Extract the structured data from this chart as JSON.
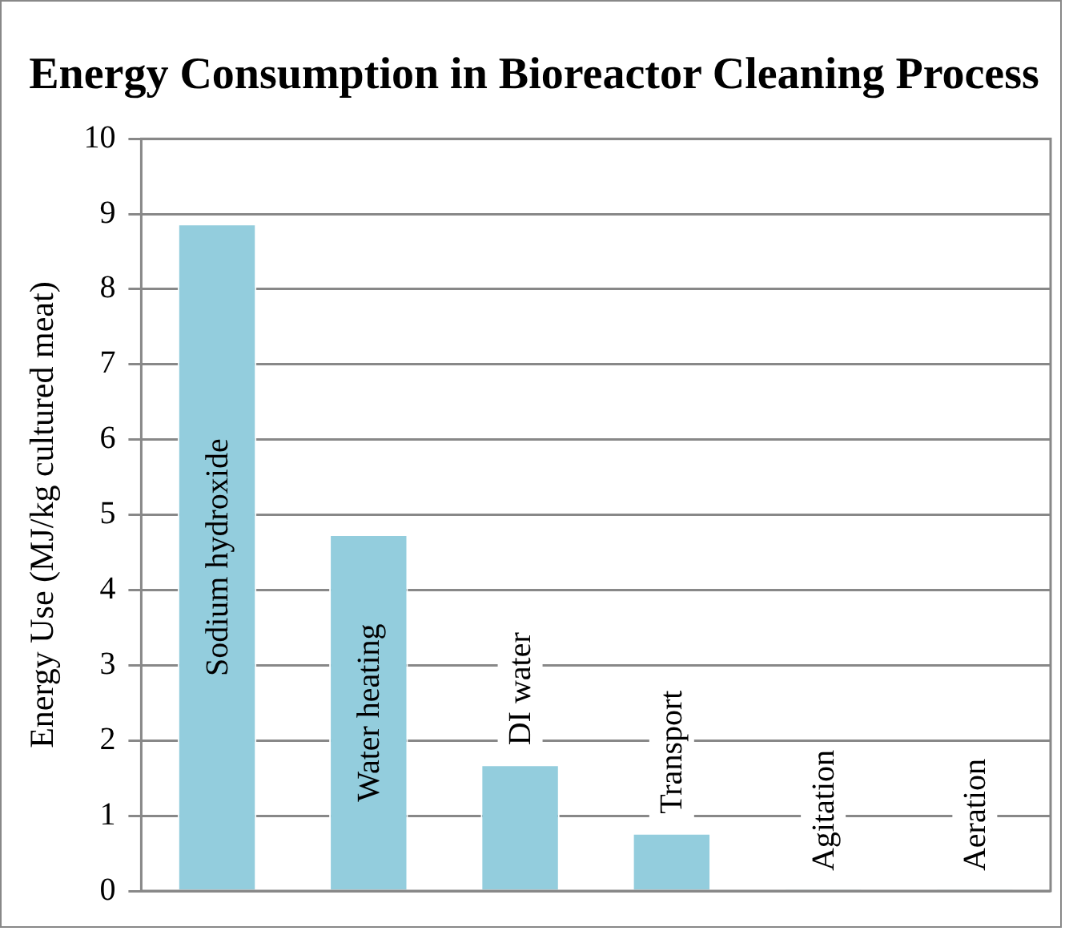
{
  "chart_data": {
    "type": "bar",
    "title": "Energy Consumption in Bioreactor Cleaning Process",
    "ylabel": "Energy Use (MJ/kg cultured meat)",
    "categories": [
      "Sodium hydroxide",
      "Water heating",
      "DI water",
      "Transport",
      "Agitation",
      "Aeration"
    ],
    "values": [
      8.87,
      4.74,
      1.68,
      0.77,
      0.01,
      0.01
    ],
    "color": "#93cddd",
    "ylim": [
      0,
      10
    ],
    "yticks": [
      0,
      1,
      2,
      3,
      4,
      5,
      6,
      7,
      8,
      9,
      10
    ],
    "grid": "y",
    "tick_labels": "y"
  }
}
